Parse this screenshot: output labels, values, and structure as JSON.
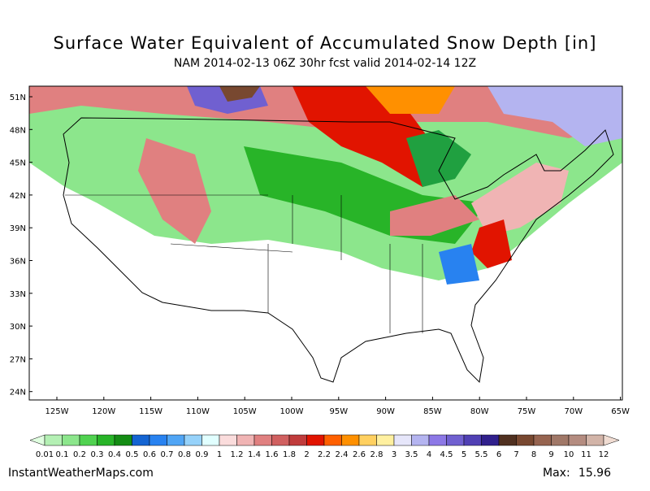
{
  "header": {
    "title": "Surface Water Equivalent of Accumulated Snow Depth [in]",
    "subtitle": "NAM 2014-02-13 06Z 30hr fcst valid 2014-02-14 12Z"
  },
  "map": {
    "lat_labels": [
      "51N",
      "48N",
      "45N",
      "42N",
      "39N",
      "36N",
      "33N",
      "30N",
      "27N",
      "24N"
    ],
    "lon_labels": [
      "125W",
      "120W",
      "115W",
      "110W",
      "105W",
      "100W",
      "95W",
      "90W",
      "85W",
      "80W",
      "75W",
      "70W",
      "65W"
    ]
  },
  "colorbar": {
    "labels": [
      "0.01",
      "0.1",
      "0.2",
      "0.3",
      "0.4",
      "0.5",
      "0.6",
      "0.7",
      "0.8",
      "0.9",
      "1",
      "1.2",
      "1.4",
      "1.6",
      "1.8",
      "2",
      "2.2",
      "2.4",
      "2.6",
      "2.8",
      "3",
      "3.5",
      "4",
      "4.5",
      "5",
      "5.5",
      "6",
      "7",
      "8",
      "9",
      "10",
      "11",
      "12"
    ],
    "colors": [
      "#e0ffe0",
      "#b4f0b4",
      "#8ce68c",
      "#50d250",
      "#28b428",
      "#148c14",
      "#1464d2",
      "#2882f0",
      "#50a5f5",
      "#96d2fa",
      "#e1ffff",
      "#fadcdc",
      "#f0b4b4",
      "#e08080",
      "#d06060",
      "#c03c3c",
      "#e11400",
      "#ff6000",
      "#ff9000",
      "#ffd060",
      "#fff0a0",
      "#e6e6fa",
      "#b4b4f0",
      "#8c78e6",
      "#7060d0",
      "#5040b4",
      "#30208c",
      "#503020",
      "#784830",
      "#966450",
      "#a07868",
      "#b48c80",
      "#d2b4a8",
      "#f0dcd2"
    ]
  },
  "footer": {
    "site": "InstantWeatherMaps.com",
    "max_label": "Max:",
    "max_value": 15.96
  }
}
